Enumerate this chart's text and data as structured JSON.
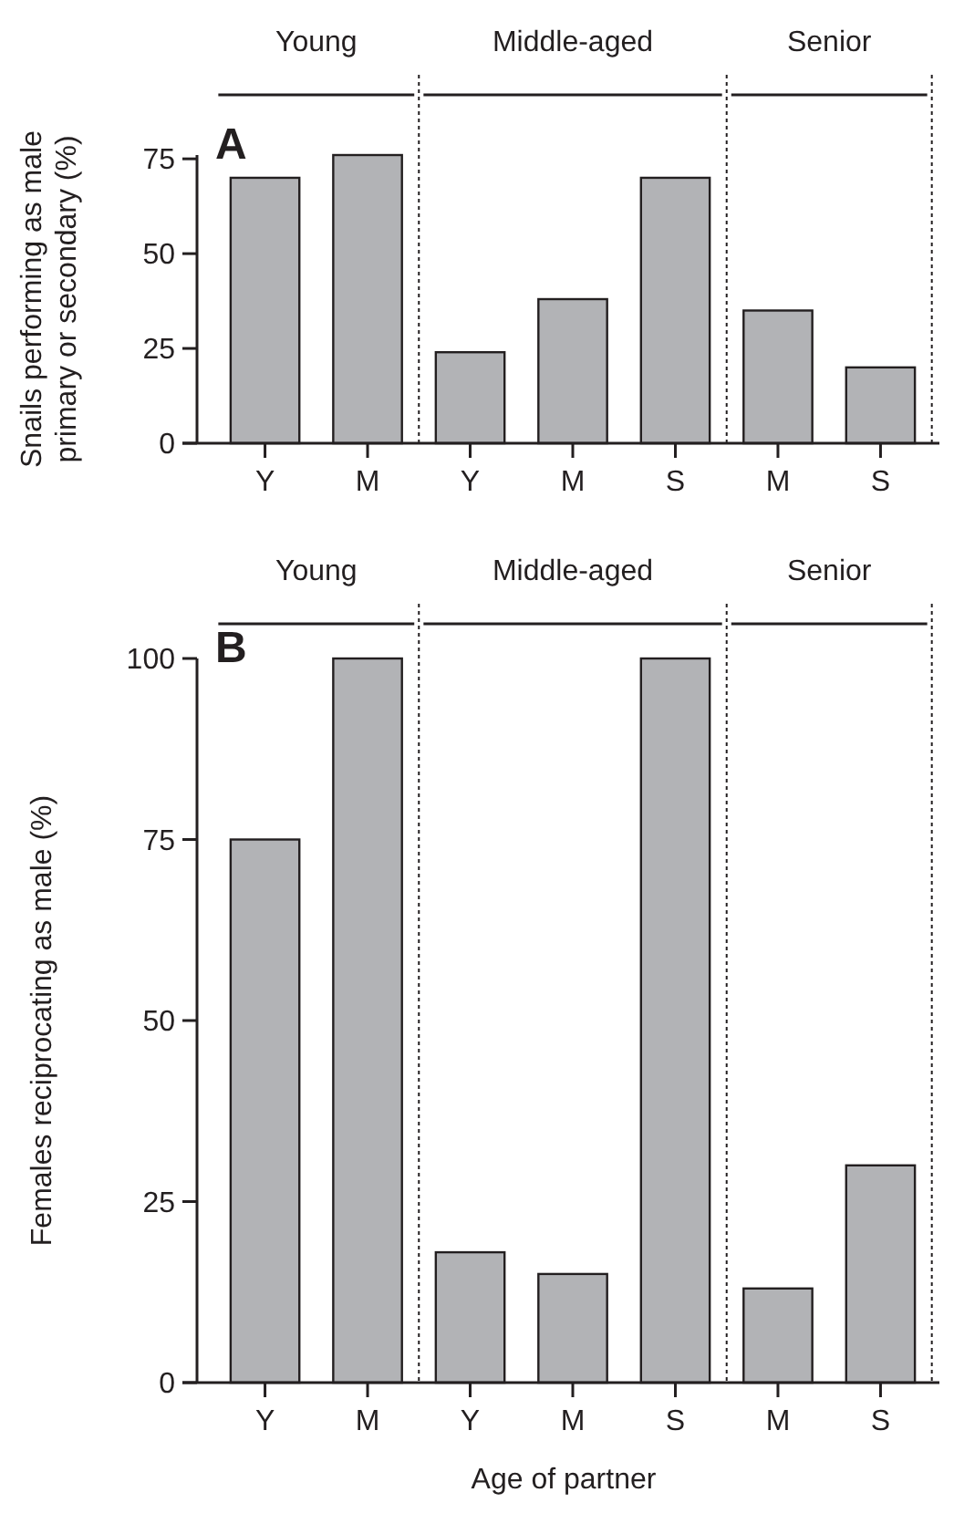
{
  "chart_data": [
    {
      "type": "bar",
      "title": "A",
      "ylabel": "Snails performing as male primary or secondary (%)",
      "categories": [
        "Y",
        "M",
        "Y",
        "M",
        "S",
        "M",
        "S"
      ],
      "values": [
        70,
        76,
        24,
        38,
        70,
        35,
        20
      ],
      "color": "#b2b3b6",
      "ylim": [
        0,
        76
      ],
      "yticks": [
        0,
        25,
        50,
        75
      ],
      "grid": false,
      "annotations": [
        "Young",
        "Middle-aged",
        "Senior"
      ]
    },
    {
      "type": "bar",
      "title": "B",
      "ylabel": "Females reciprocating as male (%)",
      "xlabel": "Age of partner",
      "categories": [
        "Y",
        "M",
        "Y",
        "M",
        "S",
        "M",
        "S"
      ],
      "values": [
        75,
        100,
        18,
        15,
        100,
        13,
        30
      ],
      "color": "#b2b3b6",
      "ylim": [
        0,
        100
      ],
      "yticks": [
        0,
        25,
        50,
        75,
        100
      ],
      "grid": false,
      "annotations": [
        "Young",
        "Middle-aged",
        "Senior"
      ]
    }
  ]
}
